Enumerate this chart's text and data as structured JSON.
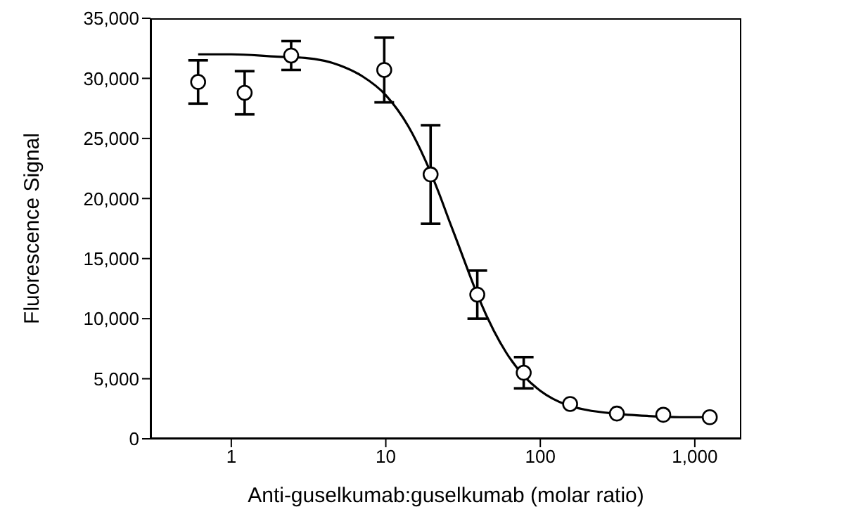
{
  "chart_data": {
    "type": "scatter",
    "xlabel": "Anti-guselkumab:guselkumab (molar ratio)",
    "ylabel": "Fluorescence Signal",
    "log": "x",
    "xlim": [
      0.3,
      2000
    ],
    "xticks": [
      1,
      10,
      100,
      {
        "value": 1000,
        "label": "1,000"
      }
    ],
    "ylim": [
      0,
      35000
    ],
    "yticks": [
      0,
      {
        "value": 5000,
        "label": "5,000"
      },
      {
        "value": 10000,
        "label": "10,000"
      },
      {
        "value": 15000,
        "label": "15,000"
      },
      {
        "value": 20000,
        "label": "20,000"
      },
      {
        "value": 25000,
        "label": "25,000"
      },
      {
        "value": 30000,
        "label": "30,000"
      },
      {
        "value": 35000,
        "label": "35,000"
      }
    ],
    "grid": false,
    "legend": false,
    "series": [
      {
        "color": "#000000",
        "marker": "circle",
        "x": [
          0.61,
          1.22,
          2.44,
          9.77,
          19.5,
          39.1,
          78.1,
          156,
          313,
          625,
          1250
        ],
        "values": [
          29700,
          28800,
          31900,
          30700,
          22000,
          12000,
          5500,
          2900,
          2100,
          2000,
          1800
        ],
        "errors": [
          1800,
          1800,
          1200,
          2700,
          4100,
          2000,
          1300,
          null,
          null,
          null,
          null
        ]
      },
      {
        "type": "line",
        "color": "#000000",
        "marker": "none",
        "line_style": "solid",
        "x": [
          0.61,
          1,
          2,
          3,
          5,
          7,
          10,
          14,
          18,
          22,
          26,
          30,
          35,
          40,
          50,
          60,
          80,
          100,
          150,
          200,
          300,
          500,
          800,
          1250
        ],
        "values": [
          32000,
          32000,
          31800,
          31700,
          31100,
          30200,
          28600,
          26000,
          23200,
          20500,
          18000,
          15900,
          13600,
          11700,
          9000,
          7200,
          5100,
          4000,
          2800,
          2400,
          2100,
          1900,
          1800,
          1800
        ]
      }
    ]
  }
}
